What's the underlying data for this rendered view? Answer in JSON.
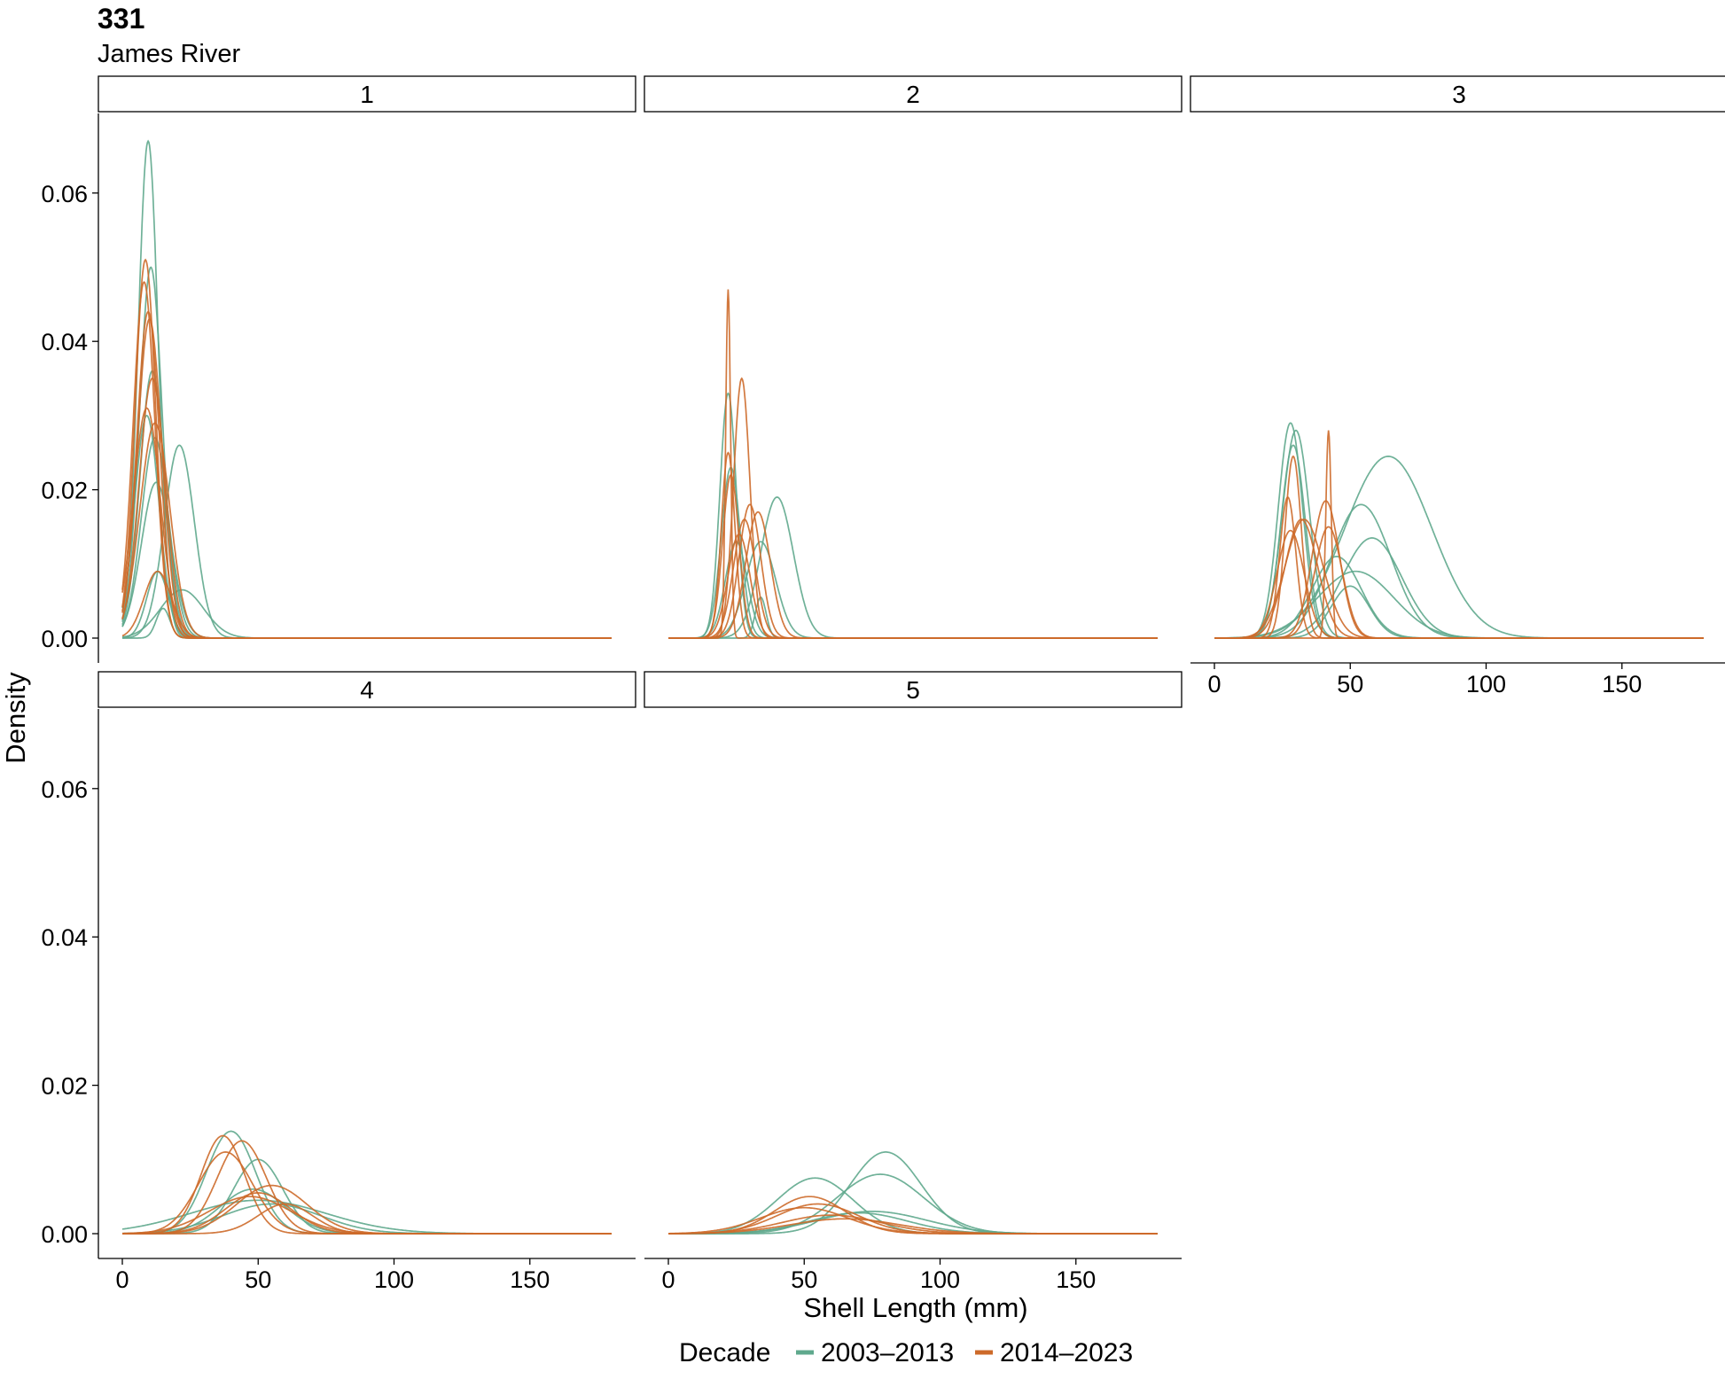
{
  "title": "331",
  "subtitle": "James River",
  "colors": {
    "2003–2013": "#5fa98d",
    "2014–2023": "#cd6a2a"
  },
  "chart_data": {
    "type": "line",
    "title": "331",
    "subtitle": "James River",
    "xlabel": "Shell Length (mm)",
    "ylabel": "Density",
    "xlim": [
      0,
      180
    ],
    "ylim": [
      0,
      0.068
    ],
    "x_ticks": [
      "0",
      "50",
      "100",
      "150"
    ],
    "x_tick_values": [
      0,
      50,
      100,
      150
    ],
    "y_ticks": [
      "0.00",
      "0.02",
      "0.04",
      "0.06"
    ],
    "y_tick_values": [
      0,
      0.02,
      0.04,
      0.06
    ],
    "grid": false,
    "legend": {
      "title": "Decade",
      "position": "bottom",
      "entries": [
        "2003–2013",
        "2014–2023"
      ]
    },
    "panels": [
      {
        "label": "1",
        "curves": [
          {
            "decade": "2003–2013",
            "mean": 9.5,
            "sd": 3.7,
            "peak": 0.067
          },
          {
            "decade": "2003–2013",
            "mean": 10.5,
            "sd": 4.2,
            "peak": 0.05
          },
          {
            "decade": "2003–2013",
            "mean": 9,
            "sd": 4.5,
            "peak": 0.03
          },
          {
            "decade": "2003–2013",
            "mean": 11,
            "sd": 4.5,
            "peak": 0.036
          },
          {
            "decade": "2003–2013",
            "mean": 12,
            "sd": 5,
            "peak": 0.027
          },
          {
            "decade": "2003–2013",
            "mean": 12.5,
            "sd": 5.5,
            "peak": 0.021
          },
          {
            "decade": "2003–2013",
            "mean": 21,
            "sd": 5.5,
            "peak": 0.026
          },
          {
            "decade": "2003–2013",
            "mean": 13,
            "sd": 4,
            "peak": 0.009
          },
          {
            "decade": "2003–2013",
            "mean": 22,
            "sd": 8,
            "peak": 0.0065
          },
          {
            "decade": "2003–2013",
            "mean": 15,
            "sd": 2.5,
            "peak": 0.004
          },
          {
            "decade": "2014–2023",
            "mean": 8.5,
            "sd": 3.8,
            "peak": 0.051
          },
          {
            "decade": "2014–2023",
            "mean": 8,
            "sd": 4,
            "peak": 0.048
          },
          {
            "decade": "2014–2023",
            "mean": 9.5,
            "sd": 4.2,
            "peak": 0.044
          },
          {
            "decade": "2014–2023",
            "mean": 10,
            "sd": 4.5,
            "peak": 0.043
          },
          {
            "decade": "2014–2023",
            "mean": 11,
            "sd": 4.8,
            "peak": 0.035
          },
          {
            "decade": "2014–2023",
            "mean": 9,
            "sd": 5,
            "peak": 0.031
          },
          {
            "decade": "2014–2023",
            "mean": 12,
            "sd": 5.5,
            "peak": 0.029
          },
          {
            "decade": "2014–2023",
            "mean": 13,
            "sd": 5,
            "peak": 0.009
          }
        ]
      },
      {
        "label": "2",
        "curves": [
          {
            "decade": "2003–2013",
            "mean": 22,
            "sd": 3,
            "peak": 0.033
          },
          {
            "decade": "2003–2013",
            "mean": 23,
            "sd": 3.5,
            "peak": 0.023
          },
          {
            "decade": "2003–2013",
            "mean": 25,
            "sd": 4,
            "peak": 0.013
          },
          {
            "decade": "2003–2013",
            "mean": 40,
            "sd": 6,
            "peak": 0.019
          },
          {
            "decade": "2003–2013",
            "mean": 34,
            "sd": 5.5,
            "peak": 0.013
          },
          {
            "decade": "2003–2013",
            "mean": 34,
            "sd": 2,
            "peak": 0.0055
          },
          {
            "decade": "2014–2023",
            "mean": 22,
            "sd": 0.9,
            "peak": 0.047
          },
          {
            "decade": "2014–2023",
            "mean": 27,
            "sd": 3,
            "peak": 0.035
          },
          {
            "decade": "2014–2023",
            "mean": 22,
            "sd": 2.5,
            "peak": 0.025
          },
          {
            "decade": "2014–2023",
            "mean": 23,
            "sd": 3,
            "peak": 0.022
          },
          {
            "decade": "2014–2023",
            "mean": 30,
            "sd": 4,
            "peak": 0.018
          },
          {
            "decade": "2014–2023",
            "mean": 33,
            "sd": 4.5,
            "peak": 0.017
          },
          {
            "decade": "2014–2023",
            "mean": 28,
            "sd": 4,
            "peak": 0.016
          },
          {
            "decade": "2014–2023",
            "mean": 26,
            "sd": 4,
            "peak": 0.014
          }
        ]
      },
      {
        "label": "3",
        "curves": [
          {
            "decade": "2003–2013",
            "mean": 28,
            "sd": 4.5,
            "peak": 0.029
          },
          {
            "decade": "2003–2013",
            "mean": 30,
            "sd": 5,
            "peak": 0.028
          },
          {
            "decade": "2003–2013",
            "mean": 29,
            "sd": 4.5,
            "peak": 0.026
          },
          {
            "decade": "2003–2013",
            "mean": 64,
            "sd": 16,
            "peak": 0.0245
          },
          {
            "decade": "2003–2013",
            "mean": 54,
            "sd": 11,
            "peak": 0.018
          },
          {
            "decade": "2003–2013",
            "mean": 58,
            "sd": 11,
            "peak": 0.0135
          },
          {
            "decade": "2003–2013",
            "mean": 52,
            "sd": 14,
            "peak": 0.009
          },
          {
            "decade": "2003–2013",
            "mean": 45,
            "sd": 9,
            "peak": 0.011
          },
          {
            "decade": "2003–2013",
            "mean": 50,
            "sd": 7,
            "peak": 0.007
          },
          {
            "decade": "2014–2023",
            "mean": 29,
            "sd": 3,
            "peak": 0.0245
          },
          {
            "decade": "2014–2023",
            "mean": 42,
            "sd": 1,
            "peak": 0.028
          },
          {
            "decade": "2014–2023",
            "mean": 41,
            "sd": 5,
            "peak": 0.0185
          },
          {
            "decade": "2014–2023",
            "mean": 32,
            "sd": 6,
            "peak": 0.016
          },
          {
            "decade": "2014–2023",
            "mean": 28,
            "sd": 5,
            "peak": 0.0145
          },
          {
            "decade": "2014–2023",
            "mean": 33,
            "sd": 7,
            "peak": 0.016
          },
          {
            "decade": "2014–2023",
            "mean": 42,
            "sd": 5,
            "peak": 0.015
          },
          {
            "decade": "2014–2023",
            "mean": 27,
            "sd": 3,
            "peak": 0.019
          }
        ]
      },
      {
        "label": "4",
        "curves": [
          {
            "decade": "2003–2013",
            "mean": 40,
            "sd": 9,
            "peak": 0.0138
          },
          {
            "decade": "2003–2013",
            "mean": 50,
            "sd": 9,
            "peak": 0.01
          },
          {
            "decade": "2003–2013",
            "mean": 48,
            "sd": 12,
            "peak": 0.006
          },
          {
            "decade": "2003–2013",
            "mean": 50,
            "sd": 25,
            "peak": 0.0045
          },
          {
            "decade": "2003–2013",
            "mean": 55,
            "sd": 18,
            "peak": 0.004
          },
          {
            "decade": "2014–2023",
            "mean": 37,
            "sd": 8,
            "peak": 0.0132
          },
          {
            "decade": "2014–2023",
            "mean": 44,
            "sd": 9,
            "peak": 0.0125
          },
          {
            "decade": "2014–2023",
            "mean": 38,
            "sd": 10,
            "peak": 0.011
          },
          {
            "decade": "2014–2023",
            "mean": 55,
            "sd": 13,
            "peak": 0.0065
          },
          {
            "decade": "2014–2023",
            "mean": 50,
            "sd": 12,
            "peak": 0.0055
          },
          {
            "decade": "2014–2023",
            "mean": 47,
            "sd": 15,
            "peak": 0.005
          },
          {
            "decade": "2014–2023",
            "mean": 60,
            "sd": 10,
            "peak": 0.004
          }
        ]
      },
      {
        "label": "5",
        "curves": [
          {
            "decade": "2003–2013",
            "mean": 54,
            "sd": 14,
            "peak": 0.0075
          },
          {
            "decade": "2003–2013",
            "mean": 80,
            "sd": 13,
            "peak": 0.011
          },
          {
            "decade": "2003–2013",
            "mean": 78,
            "sd": 16,
            "peak": 0.008
          },
          {
            "decade": "2003–2013",
            "mean": 75,
            "sd": 20,
            "peak": 0.003
          },
          {
            "decade": "2003–2013",
            "mean": 70,
            "sd": 18,
            "peak": 0.0028
          },
          {
            "decade": "2014–2023",
            "mean": 52,
            "sd": 13,
            "peak": 0.005
          },
          {
            "decade": "2014–2023",
            "mean": 55,
            "sd": 15,
            "peak": 0.004
          },
          {
            "decade": "2014–2023",
            "mean": 50,
            "sd": 16,
            "peak": 0.0035
          },
          {
            "decade": "2014–2023",
            "mean": 60,
            "sd": 18,
            "peak": 0.0025
          },
          {
            "decade": "2014–2023",
            "mean": 65,
            "sd": 20,
            "peak": 0.002
          }
        ]
      }
    ]
  }
}
